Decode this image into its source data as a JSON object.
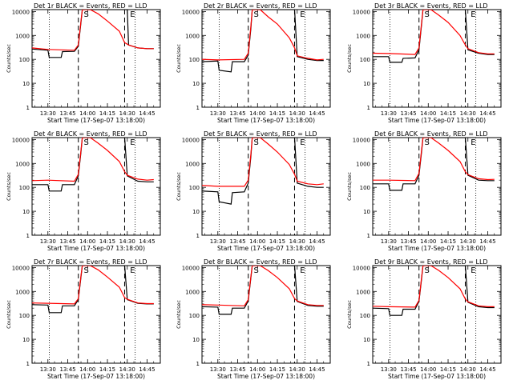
{
  "chart_data": {
    "type": "line",
    "layout": "3x3 grid of panels",
    "xlabel": "Start Time (17-Sep-07 13:18:00)",
    "ylabel": "Counts/sec",
    "x_ticks": [
      "13:30",
      "13:45",
      "14:00",
      "14:15",
      "14:30",
      "14:45"
    ],
    "x_tick_minutes": [
      30,
      45,
      60,
      75,
      90,
      105
    ],
    "xlim_minutes_after_13h": [
      18,
      115
    ],
    "y_scale": "log",
    "y_ticks": [
      "1",
      "10",
      "100",
      "1000",
      "10000"
    ],
    "ylim": [
      1,
      12000
    ],
    "series_colors": {
      "events": "#000000",
      "lld": "#ff0000"
    },
    "markers": {
      "dotted_minutes": [
        31,
        96
      ],
      "dashed_minutes": [
        53,
        88
      ],
      "letters": [
        "S",
        "E"
      ],
      "letter_minutes": [
        59,
        94
      ]
    },
    "panels": [
      {
        "title": "Det 1r BLACK = Events, RED = LLD",
        "events": [
          [
            18,
            270
          ],
          [
            30,
            240
          ],
          [
            31,
            120
          ],
          [
            40,
            120
          ],
          [
            41,
            210
          ],
          [
            50,
            215
          ],
          [
            53,
            350
          ],
          [
            55,
            3500
          ],
          [
            56,
            12000
          ],
          [
            90,
            12000
          ],
          [
            91,
            400
          ],
          [
            98,
            300
          ],
          [
            105,
            280
          ],
          [
            110,
            280
          ]
        ],
        "lld": [
          [
            18,
            300
          ],
          [
            30,
            260
          ],
          [
            50,
            240
          ],
          [
            53,
            400
          ],
          [
            55,
            4000
          ],
          [
            56,
            12000
          ],
          [
            62,
            12000
          ],
          [
            68,
            8000
          ],
          [
            75,
            4000
          ],
          [
            84,
            1500
          ],
          [
            88,
            500
          ],
          [
            91,
            400
          ],
          [
            98,
            300
          ],
          [
            105,
            280
          ],
          [
            110,
            280
          ]
        ]
      },
      {
        "title": "Det 2r BLACK = Events, RED = LLD",
        "events": [
          [
            18,
            80
          ],
          [
            30,
            85
          ],
          [
            31,
            35
          ],
          [
            40,
            30
          ],
          [
            41,
            80
          ],
          [
            50,
            80
          ],
          [
            53,
            150
          ],
          [
            55,
            2000
          ],
          [
            56,
            12000
          ],
          [
            88,
            12000
          ],
          [
            90,
            130
          ],
          [
            98,
            100
          ],
          [
            105,
            90
          ],
          [
            110,
            90
          ]
        ],
        "lld": [
          [
            18,
            100
          ],
          [
            30,
            95
          ],
          [
            50,
            100
          ],
          [
            53,
            180
          ],
          [
            55,
            2500
          ],
          [
            56,
            12000
          ],
          [
            62,
            12000
          ],
          [
            68,
            6000
          ],
          [
            75,
            3000
          ],
          [
            84,
            800
          ],
          [
            88,
            300
          ],
          [
            90,
            140
          ],
          [
            98,
            110
          ],
          [
            105,
            95
          ],
          [
            110,
            100
          ]
        ]
      },
      {
        "title": "Det 3r BLACK = Events, RED = LLD",
        "events": [
          [
            18,
            130
          ],
          [
            30,
            130
          ],
          [
            31,
            75
          ],
          [
            40,
            75
          ],
          [
            41,
            110
          ],
          [
            50,
            115
          ],
          [
            53,
            250
          ],
          [
            55,
            3000
          ],
          [
            56,
            12000
          ],
          [
            88,
            12000
          ],
          [
            90,
            250
          ],
          [
            98,
            180
          ],
          [
            105,
            160
          ],
          [
            110,
            160
          ]
        ],
        "lld": [
          [
            18,
            180
          ],
          [
            30,
            175
          ],
          [
            50,
            160
          ],
          [
            53,
            300
          ],
          [
            55,
            3500
          ],
          [
            56,
            12000
          ],
          [
            62,
            12000
          ],
          [
            68,
            7000
          ],
          [
            75,
            3500
          ],
          [
            84,
            1000
          ],
          [
            88,
            400
          ],
          [
            90,
            280
          ],
          [
            98,
            190
          ],
          [
            105,
            170
          ],
          [
            110,
            170
          ]
        ]
      },
      {
        "title": "Det 4r BLACK = Events, RED = LLD",
        "events": [
          [
            18,
            130
          ],
          [
            30,
            130
          ],
          [
            31,
            70
          ],
          [
            40,
            70
          ],
          [
            41,
            130
          ],
          [
            50,
            130
          ],
          [
            53,
            300
          ],
          [
            55,
            3000
          ],
          [
            56,
            12000
          ],
          [
            88,
            12000
          ],
          [
            90,
            300
          ],
          [
            98,
            180
          ],
          [
            105,
            170
          ],
          [
            110,
            170
          ]
        ],
        "lld": [
          [
            18,
            190
          ],
          [
            30,
            200
          ],
          [
            50,
            180
          ],
          [
            53,
            350
          ],
          [
            55,
            3500
          ],
          [
            56,
            12000
          ],
          [
            62,
            12000
          ],
          [
            68,
            7000
          ],
          [
            75,
            3500
          ],
          [
            84,
            1200
          ],
          [
            88,
            450
          ],
          [
            90,
            320
          ],
          [
            98,
            220
          ],
          [
            105,
            200
          ],
          [
            110,
            210
          ]
        ]
      },
      {
        "title": "Det 5r BLACK = Events, RED = LLD",
        "events": [
          [
            18,
            70
          ],
          [
            30,
            65
          ],
          [
            31,
            25
          ],
          [
            40,
            20
          ],
          [
            41,
            60
          ],
          [
            50,
            65
          ],
          [
            53,
            150
          ],
          [
            55,
            2000
          ],
          [
            56,
            12000
          ],
          [
            88,
            12000
          ],
          [
            90,
            150
          ],
          [
            98,
            110
          ],
          [
            105,
            100
          ],
          [
            110,
            100
          ]
        ],
        "lld": [
          [
            18,
            120
          ],
          [
            30,
            110
          ],
          [
            50,
            110
          ],
          [
            53,
            200
          ],
          [
            55,
            2500
          ],
          [
            56,
            12000
          ],
          [
            62,
            12000
          ],
          [
            68,
            6500
          ],
          [
            75,
            3000
          ],
          [
            84,
            900
          ],
          [
            88,
            350
          ],
          [
            90,
            180
          ],
          [
            98,
            140
          ],
          [
            105,
            130
          ],
          [
            110,
            140
          ]
        ]
      },
      {
        "title": "Det 6r BLACK = Events, RED = LLD",
        "events": [
          [
            18,
            140
          ],
          [
            30,
            140
          ],
          [
            31,
            75
          ],
          [
            40,
            75
          ],
          [
            41,
            140
          ],
          [
            50,
            140
          ],
          [
            53,
            320
          ],
          [
            55,
            3200
          ],
          [
            56,
            12000
          ],
          [
            88,
            12000
          ],
          [
            90,
            320
          ],
          [
            98,
            200
          ],
          [
            105,
            190
          ],
          [
            110,
            190
          ]
        ],
        "lld": [
          [
            18,
            200
          ],
          [
            30,
            200
          ],
          [
            50,
            190
          ],
          [
            53,
            380
          ],
          [
            55,
            3800
          ],
          [
            56,
            12000
          ],
          [
            62,
            12000
          ],
          [
            68,
            7000
          ],
          [
            75,
            3500
          ],
          [
            84,
            1200
          ],
          [
            88,
            450
          ],
          [
            90,
            340
          ],
          [
            98,
            230
          ],
          [
            105,
            210
          ],
          [
            110,
            215
          ]
        ]
      },
      {
        "title": "Det 7r BLACK = Events, RED = LLD",
        "events": [
          [
            18,
            280
          ],
          [
            30,
            270
          ],
          [
            31,
            130
          ],
          [
            40,
            130
          ],
          [
            41,
            250
          ],
          [
            50,
            250
          ],
          [
            53,
            450
          ],
          [
            55,
            4000
          ],
          [
            56,
            12000
          ],
          [
            88,
            12000
          ],
          [
            90,
            450
          ],
          [
            98,
            320
          ],
          [
            105,
            300
          ],
          [
            110,
            300
          ]
        ],
        "lld": [
          [
            18,
            330
          ],
          [
            30,
            320
          ],
          [
            50,
            300
          ],
          [
            53,
            500
          ],
          [
            55,
            4500
          ],
          [
            56,
            12000
          ],
          [
            62,
            12000
          ],
          [
            68,
            8000
          ],
          [
            75,
            4000
          ],
          [
            84,
            1500
          ],
          [
            88,
            550
          ],
          [
            90,
            470
          ],
          [
            98,
            330
          ],
          [
            105,
            310
          ],
          [
            110,
            310
          ]
        ]
      },
      {
        "title": "Det 8r BLACK = Events, RED = LLD",
        "events": [
          [
            18,
            230
          ],
          [
            30,
            220
          ],
          [
            31,
            110
          ],
          [
            40,
            110
          ],
          [
            41,
            200
          ],
          [
            50,
            200
          ],
          [
            53,
            400
          ],
          [
            55,
            3800
          ],
          [
            56,
            12000
          ],
          [
            88,
            12000
          ],
          [
            90,
            380
          ],
          [
            98,
            260
          ],
          [
            105,
            240
          ],
          [
            110,
            240
          ]
        ],
        "lld": [
          [
            18,
            280
          ],
          [
            30,
            270
          ],
          [
            50,
            250
          ],
          [
            53,
            450
          ],
          [
            55,
            4200
          ],
          [
            56,
            12000
          ],
          [
            62,
            12000
          ],
          [
            68,
            7500
          ],
          [
            75,
            3800
          ],
          [
            84,
            1300
          ],
          [
            88,
            500
          ],
          [
            90,
            400
          ],
          [
            98,
            280
          ],
          [
            105,
            260
          ],
          [
            110,
            260
          ]
        ]
      },
      {
        "title": "Det 9r BLACK = Events, RED = LLD",
        "events": [
          [
            18,
            200
          ],
          [
            30,
            190
          ],
          [
            31,
            100
          ],
          [
            40,
            100
          ],
          [
            41,
            180
          ],
          [
            50,
            180
          ],
          [
            53,
            380
          ],
          [
            55,
            3500
          ],
          [
            56,
            12000
          ],
          [
            88,
            12000
          ],
          [
            90,
            350
          ],
          [
            98,
            230
          ],
          [
            105,
            210
          ],
          [
            110,
            210
          ]
        ],
        "lld": [
          [
            18,
            240
          ],
          [
            30,
            230
          ],
          [
            50,
            220
          ],
          [
            53,
            420
          ],
          [
            55,
            4000
          ],
          [
            56,
            12000
          ],
          [
            62,
            12000
          ],
          [
            68,
            7500
          ],
          [
            75,
            3800
          ],
          [
            84,
            1300
          ],
          [
            88,
            480
          ],
          [
            90,
            370
          ],
          [
            98,
            250
          ],
          [
            105,
            230
          ],
          [
            110,
            230
          ]
        ]
      }
    ]
  }
}
